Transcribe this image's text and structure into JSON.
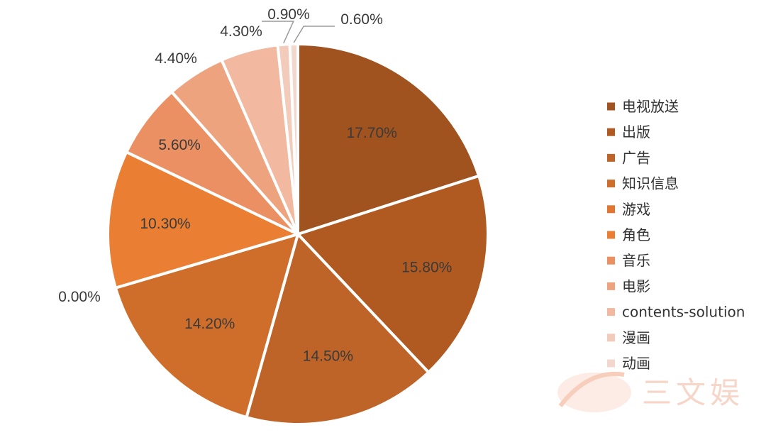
{
  "chart_data": {
    "type": "pie",
    "start_angle_deg": 0,
    "direction": "clockwise",
    "slices": [
      {
        "label": "电视放送",
        "value": 17.7,
        "display": "17.70%",
        "color": "#a0521f"
      },
      {
        "label": " 出版",
        "value": 15.8,
        "display": "15.80%",
        "color": "#b05a22"
      },
      {
        "label": "广告",
        "value": 14.5,
        "display": "14.50%",
        "color": "#bf6428"
      },
      {
        "label": "知识信息",
        "value": 14.2,
        "display": "14.20%",
        "color": "#cf6e2b"
      },
      {
        "label": "游戏",
        "value": 0.0,
        "display": "0.00%",
        "color": "#e27630"
      },
      {
        "label": "角色",
        "value": 10.3,
        "display": "10.30%",
        "color": "#ea7f34"
      },
      {
        "label": "音乐",
        "value": 5.6,
        "display": "5.60%",
        "color": "#eb9062"
      },
      {
        "label": "电影",
        "value": 4.4,
        "display": "4.40%",
        "color": "#eea37f"
      },
      {
        "label": "contents-solution",
        "value": 4.3,
        "display": "4.30%",
        "color": "#f2b8a0"
      },
      {
        "label": "漫画",
        "value": 0.9,
        "display": "0.90%",
        "color": "#f3cbbb"
      },
      {
        "label": "动画",
        "value": 0.6,
        "display": "0.60%",
        "color": "#f4d7cc"
      }
    ]
  },
  "watermark": {
    "text": "三文娱"
  }
}
